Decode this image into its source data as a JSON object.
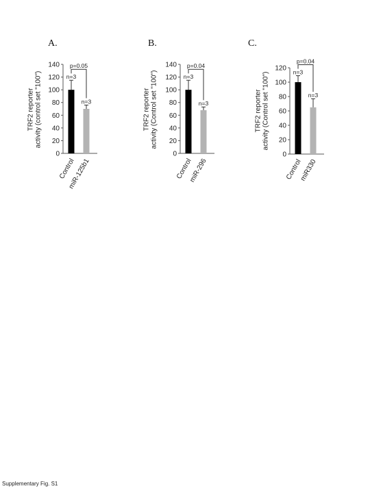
{
  "caption": "Supplementary Fig. S1",
  "chart_data": [
    {
      "type": "bar",
      "panel": "A.",
      "categories": [
        "Control",
        "miR-125b1"
      ],
      "values": [
        100,
        70
      ],
      "errors": [
        15,
        6
      ],
      "colors": [
        "#000000",
        "#b3b3b3"
      ],
      "ylabel_lines": [
        "TRF2 reporter",
        "activity (control set \"100\")"
      ],
      "ylim": [
        0,
        140
      ],
      "yticks": [
        0,
        20,
        40,
        60,
        80,
        100,
        120,
        140
      ],
      "n_labels": [
        "n=3",
        "n=3"
      ],
      "pvalue": "p=0.05"
    },
    {
      "type": "bar",
      "panel": "B.",
      "categories": [
        "Control",
        "miR-296"
      ],
      "values": [
        100,
        68
      ],
      "errors": [
        15,
        5
      ],
      "colors": [
        "#000000",
        "#b3b3b3"
      ],
      "ylabel_lines": [
        "TRF2 reporter",
        "activity (Control set \"100\")"
      ],
      "ylim": [
        0,
        140
      ],
      "yticks": [
        0,
        20,
        40,
        60,
        80,
        100,
        120,
        140
      ],
      "n_labels": [
        "n=3",
        "n=3"
      ],
      "pvalue": "p=0.04"
    },
    {
      "type": "bar",
      "panel": "C.",
      "categories": [
        "Control",
        "miR330"
      ],
      "values": [
        100,
        65
      ],
      "errors": [
        9,
        12
      ],
      "colors": [
        "#000000",
        "#b3b3b3"
      ],
      "ylabel_lines": [
        "TRF2 reporter",
        "activity (Control set \"100\")"
      ],
      "ylim": [
        0,
        120
      ],
      "yticks": [
        0,
        20,
        40,
        60,
        80,
        100,
        120
      ],
      "n_labels": [
        "n=3",
        "n=3"
      ],
      "pvalue": "p=0.04"
    }
  ]
}
